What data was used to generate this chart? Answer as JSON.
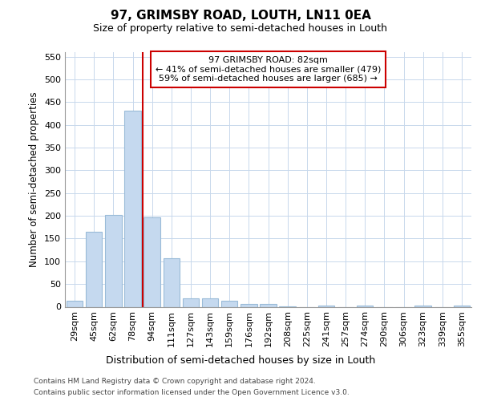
{
  "title": "97, GRIMSBY ROAD, LOUTH, LN11 0EA",
  "subtitle": "Size of property relative to semi-detached houses in Louth",
  "xlabel": "Distribution of semi-detached houses by size in Louth",
  "ylabel": "Number of semi-detached properties",
  "categories": [
    "29sqm",
    "45sqm",
    "62sqm",
    "78sqm",
    "94sqm",
    "111sqm",
    "127sqm",
    "143sqm",
    "159sqm",
    "176sqm",
    "192sqm",
    "208sqm",
    "225sqm",
    "241sqm",
    "257sqm",
    "274sqm",
    "290sqm",
    "306sqm",
    "323sqm",
    "339sqm",
    "355sqm"
  ],
  "values": [
    13,
    165,
    202,
    432,
    196,
    106,
    19,
    18,
    14,
    6,
    7,
    1,
    0,
    3,
    0,
    3,
    0,
    0,
    3,
    0,
    3
  ],
  "bar_color": "#c5d9ef",
  "bar_edgecolor": "#9abbd8",
  "vline_color": "#cc0000",
  "vline_x": 3.5,
  "annotation_line1": "97 GRIMSBY ROAD: 82sqm",
  "annotation_line2": "← 41% of semi-detached houses are smaller (479)",
  "annotation_line3": "59% of semi-detached houses are larger (685) →",
  "annotation_box_edgecolor": "#cc0000",
  "ylim": [
    0,
    560
  ],
  "yticks": [
    0,
    50,
    100,
    150,
    200,
    250,
    300,
    350,
    400,
    450,
    500,
    550
  ],
  "footer_line1": "Contains HM Land Registry data © Crown copyright and database right 2024.",
  "footer_line2": "Contains public sector information licensed under the Open Government Licence v3.0.",
  "background_color": "#ffffff",
  "grid_color": "#c8d8ec"
}
